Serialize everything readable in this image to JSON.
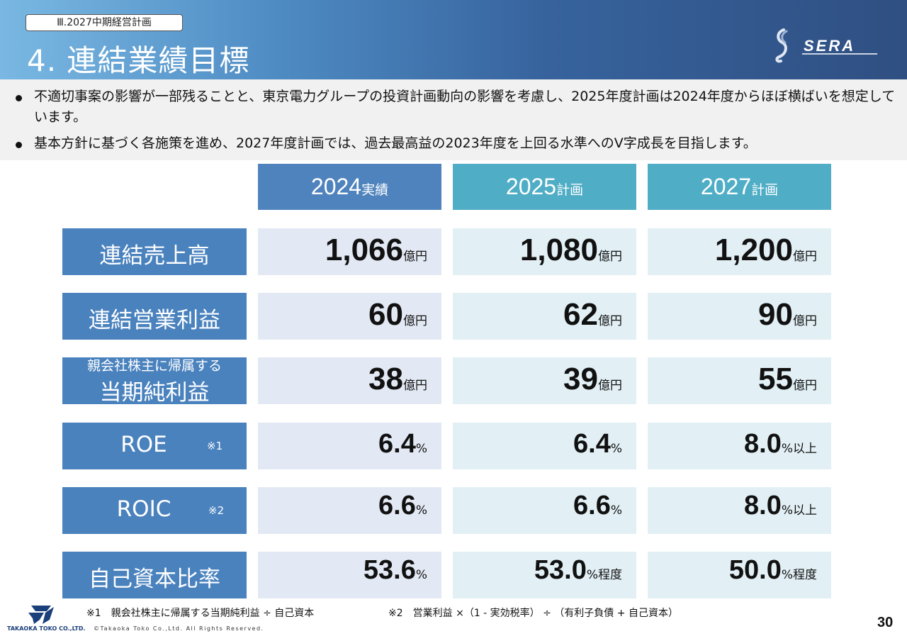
{
  "header": {
    "section": "Ⅲ.2027中期経営計画",
    "title": "4. 連結業績目標",
    "brand": "SERA"
  },
  "bullets": [
    "不適切事案の影響が一部残ることと、東京電力グループの投資計画動向の影響を考慮し、2025年度計画は2024年度からほぼ横ばいを想定しています。",
    "基本方針に基づく各施策を進め、2027年度計画では、過去最高益の2023年度を上回る水準へのV字成長を目指します。"
  ],
  "columns": [
    {
      "year": "2024",
      "suffix": "実績",
      "color": "#4f83bd"
    },
    {
      "year": "2025",
      "suffix": "計画",
      "color": "#4fadc6"
    },
    {
      "year": "2027",
      "suffix": "計画",
      "color": "#4fadc6"
    }
  ],
  "rows": [
    {
      "label": "連結売上高",
      "cells": [
        {
          "num": "1,066",
          "unit": "億円"
        },
        {
          "num": "1,080",
          "unit": "億円"
        },
        {
          "num": "1,200",
          "unit": "億円"
        }
      ]
    },
    {
      "label": "連結営業利益",
      "cells": [
        {
          "num": "60",
          "unit": "億円"
        },
        {
          "num": "62",
          "unit": "億円"
        },
        {
          "num": "90",
          "unit": "億円"
        }
      ]
    },
    {
      "label_small": "親会社株主に帰属する",
      "label": "当期純利益",
      "cells": [
        {
          "num": "38",
          "unit": "億円"
        },
        {
          "num": "39",
          "unit": "億円"
        },
        {
          "num": "55",
          "unit": "億円"
        }
      ]
    },
    {
      "label": "ROE",
      "note": "※1",
      "cells": [
        {
          "num": "6.4",
          "unit": "%"
        },
        {
          "num": "6.4",
          "unit": "%"
        },
        {
          "num": "8.0",
          "unit": "%以上"
        }
      ]
    },
    {
      "label": "ROIC",
      "note": "※2",
      "cells": [
        {
          "num": "6.6",
          "unit": "%"
        },
        {
          "num": "6.6",
          "unit": "%"
        },
        {
          "num": "8.0",
          "unit": "%以上"
        }
      ]
    },
    {
      "label": "自己資本比率",
      "cells": [
        {
          "num": "53.6",
          "unit": "%"
        },
        {
          "num": "53.0",
          "unit": "%程度"
        },
        {
          "num": "50.0",
          "unit": "%程度"
        }
      ]
    }
  ],
  "footnotes": [
    "※1　親会社株主に帰属する当期純利益 ÷ 自己資本",
    "※2　営業利益 ×（1 - 実効税率） ÷ （有利子負債 + 自己資本）"
  ],
  "footer": {
    "company": "TAKAOKA TOKO CO.,LTD.",
    "copyright": "©Takaoka Toko Co.,Ltd. All Rights Reserved.",
    "page": "30"
  }
}
